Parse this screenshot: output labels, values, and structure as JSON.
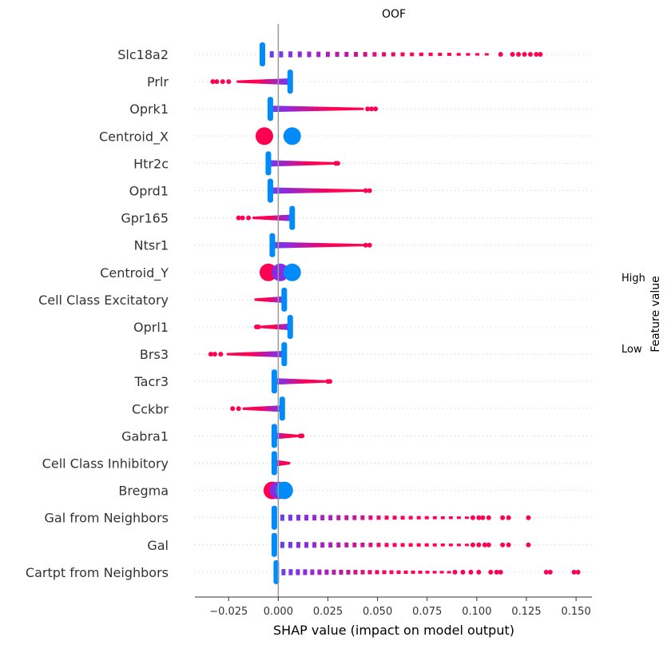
{
  "chart_data": {
    "type": "scatter",
    "subtype": "shap-beeswarm",
    "title": "OOF",
    "xlabel": "SHAP value (impact on model output)",
    "xlim": [
      -0.042,
      0.158
    ],
    "xticks": [
      -0.025,
      0.0,
      0.025,
      0.05,
      0.075,
      0.1,
      0.125,
      0.15
    ],
    "xtick_labels": [
      "−0.025",
      "0.000",
      "0.025",
      "0.050",
      "0.075",
      "0.100",
      "0.125",
      "0.150"
    ],
    "colorbar": {
      "title": "Feature value",
      "high_label": "High",
      "low_label": "Low",
      "low_color": "#008bfb",
      "high_color": "#ff0052",
      "mid_color": "#8a2be2"
    },
    "grid": false,
    "features": [
      {
        "name": "Slc18a2",
        "min": -0.008,
        "max": 0.132,
        "low_at": "negative",
        "low_center": -0.008,
        "high_dense_end": 0.105,
        "tail": [
          0.112,
          0.118,
          0.121,
          0.124,
          0.127,
          0.13,
          0.132
        ]
      },
      {
        "name": "Prlr",
        "min": -0.033,
        "max": 0.006,
        "low_at": "positive",
        "low_center": 0.006,
        "high_dense_end": -0.02,
        "tail": [
          -0.025,
          -0.028,
          -0.031,
          -0.033
        ]
      },
      {
        "name": "Oprk1",
        "min": -0.004,
        "max": 0.049,
        "low_at": "negative",
        "low_center": -0.004,
        "high_dense_end": 0.042,
        "tail": [
          0.045,
          0.047,
          0.049
        ]
      },
      {
        "name": "Centroid_X",
        "min": -0.009,
        "max": 0.01,
        "low_at": "clusters",
        "clusters": [
          [
            -0.007,
            "high"
          ],
          [
            0.007,
            "low"
          ]
        ]
      },
      {
        "name": "Htr2c",
        "min": -0.005,
        "max": 0.03,
        "low_at": "negative",
        "low_center": -0.005,
        "high_dense_end": 0.028,
        "tail": [
          0.029,
          0.03
        ]
      },
      {
        "name": "Oprd1",
        "min": -0.004,
        "max": 0.046,
        "low_at": "negative",
        "low_center": -0.004,
        "high_dense_end": 0.042,
        "tail": [
          0.044,
          0.046
        ]
      },
      {
        "name": "Gpr165",
        "min": -0.02,
        "max": 0.008,
        "low_at": "positive",
        "low_center": 0.007,
        "high_dense_end": -0.012,
        "tail": [
          -0.015,
          -0.018,
          -0.02
        ]
      },
      {
        "name": "Ntsr1",
        "min": -0.003,
        "max": 0.046,
        "low_at": "negative",
        "low_center": -0.003,
        "high_dense_end": 0.042,
        "tail": [
          0.044,
          0.046
        ]
      },
      {
        "name": "Centroid_Y",
        "min": -0.008,
        "max": 0.01,
        "low_at": "clusters",
        "clusters": [
          [
            -0.005,
            "high"
          ],
          [
            0.001,
            "mid"
          ],
          [
            0.007,
            "low"
          ]
        ]
      },
      {
        "name": "Cell Class Excitatory",
        "min": -0.011,
        "max": 0.003,
        "low_at": "positive",
        "low_center": 0.003,
        "high_dense_end": -0.011,
        "tail": []
      },
      {
        "name": "Oprl1",
        "min": -0.011,
        "max": 0.006,
        "low_at": "positive",
        "low_center": 0.006,
        "high_dense_end": -0.008,
        "tail": [
          -0.01,
          -0.011
        ]
      },
      {
        "name": "Brs3",
        "min": -0.034,
        "max": 0.003,
        "low_at": "positive",
        "low_center": 0.003,
        "high_dense_end": -0.025,
        "tail": [
          -0.029,
          -0.032,
          -0.034
        ]
      },
      {
        "name": "Tacr3",
        "min": -0.002,
        "max": 0.026,
        "low_at": "negative",
        "low_center": -0.002,
        "high_dense_end": 0.023,
        "tail": [
          0.025,
          0.026
        ]
      },
      {
        "name": "Cckbr",
        "min": -0.023,
        "max": 0.002,
        "low_at": "positive",
        "low_center": 0.002,
        "high_dense_end": -0.017,
        "tail": [
          -0.02,
          -0.023
        ]
      },
      {
        "name": "Gabra1",
        "min": -0.002,
        "max": 0.012,
        "low_at": "negative",
        "low_center": -0.002,
        "high_dense_end": 0.009,
        "tail": [
          0.011,
          0.012
        ]
      },
      {
        "name": "Cell Class Inhibitory",
        "min": -0.002,
        "max": 0.005,
        "low_at": "negative",
        "low_center": -0.002,
        "high_dense_end": 0.005,
        "tail": []
      },
      {
        "name": "Bregma",
        "min": -0.006,
        "max": 0.005,
        "low_at": "clusters",
        "clusters": [
          [
            -0.003,
            "high"
          ],
          [
            0.0,
            "mid"
          ],
          [
            0.003,
            "low"
          ]
        ]
      },
      {
        "name": "Gal from Neighbors",
        "min": -0.002,
        "max": 0.126,
        "low_at": "negative",
        "low_center": -0.002,
        "high_dense_end": 0.095,
        "tail": [
          0.098,
          0.101,
          0.103,
          0.106,
          0.113,
          0.116,
          0.126
        ]
      },
      {
        "name": "Gal",
        "min": -0.002,
        "max": 0.126,
        "low_at": "negative",
        "low_center": -0.002,
        "high_dense_end": 0.095,
        "tail": [
          0.098,
          0.101,
          0.104,
          0.106,
          0.113,
          0.116,
          0.126
        ]
      },
      {
        "name": "Cartpt from Neighbors",
        "min": -0.001,
        "max": 0.151,
        "low_at": "negative",
        "low_center": -0.001,
        "high_dense_end": 0.086,
        "tail": [
          0.089,
          0.093,
          0.097,
          0.101,
          0.107,
          0.11,
          0.112,
          0.135,
          0.137,
          0.149,
          0.151
        ]
      }
    ]
  }
}
